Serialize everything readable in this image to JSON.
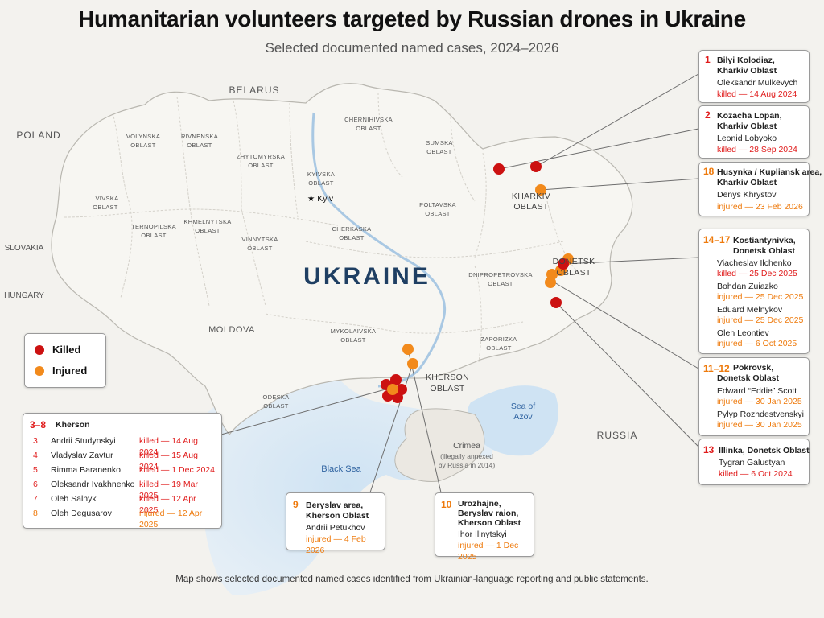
{
  "header": {
    "title": "Humanitarian volunteers targeted by Russian drones in Ukraine",
    "subtitle": "Selected documented named cases, 2024–2026"
  },
  "map": {
    "country_label": "UKRAINE",
    "neighbors": {
      "belarus": "BELARUS",
      "poland": "POLAND",
      "slovakia": "SLOVAKIA",
      "hungary": "HUNGARY",
      "moldova": "MOLDOVA",
      "russia": "RUSSIA"
    },
    "water": {
      "black_sea": "Black Sea",
      "azov_1": "Sea of",
      "azov_2": "Azov"
    },
    "crimea": {
      "name": "Crimea",
      "note_1": "(illegally annexed",
      "note_2": "by Russia in 2014)"
    },
    "capital": "★ Kyiv",
    "oblasts": {
      "volynska_1": "VOLYNSKA",
      "volynska_2": "OBLAST",
      "rivnenska_1": "RIVNENSKA",
      "rivnenska_2": "OBLAST",
      "zhytomyrska_1": "ZHYTOMYRSKA",
      "zhytomyrska_2": "OBLAST",
      "kyivska_1": "KYIVSKA",
      "kyivska_2": "OBLAST",
      "chernihivska_1": "CHERNIHIVSKA",
      "chernihivska_2": "OBLAST",
      "sumska_1": "SUMSKA",
      "sumska_2": "OBLAST",
      "kharkiv_1": "KHARKIV",
      "kharkiv_2": "OBLAST",
      "lvivska_1": "LVIVSKA",
      "lvivska_2": "OBLAST",
      "ternopilska_1": "TERNOPILSKA",
      "ternopilska_2": "OBLAST",
      "khmelnytska_1": "KHMELNYTSKA",
      "khmelnytska_2": "OBLAST",
      "vinnytska_1": "VINNYTSKA",
      "vinnytska_2": "OBLAST",
      "cherkaska_1": "CHERKASKA",
      "cherkaska_2": "OBLAST",
      "poltavska_1": "POLTAVSKA",
      "poltavska_2": "OBLAST",
      "dnipro_1": "DNIPROPETROVSKA",
      "dnipro_2": "OBLAST",
      "donetsk_1": "DONETSK",
      "donetsk_2": "OBLAST",
      "mykolaivska_1": "MYKOLAIVSKA",
      "mykolaivska_2": "OBLAST",
      "kherson_1": "KHERSON",
      "kherson_2": "OBLAST",
      "zaporizka_1": "ZAPORIZKA",
      "zaporizka_2": "OBLAST",
      "odeska_1": "ODESKA",
      "odeska_2": "OBLAST"
    }
  },
  "legend": {
    "killed": "Killed",
    "injured": "Injured",
    "killed_color": "#cc1111",
    "injured_color": "#f28a1c"
  },
  "cases": {
    "c1": {
      "num": "1",
      "place_1": "Bilyi Kolodiaz,",
      "place_2": "Kharkiv Oblast",
      "name": "Oleksandr Mulkevych",
      "status": "killed — 14 Aug 2024"
    },
    "c2": {
      "num": "2",
      "place_1": "Kozacha Lopan,",
      "place_2": "Kharkiv Oblast",
      "name": "Leonid Lobyoko",
      "status": "killed — 28 Sep 2024"
    },
    "c18": {
      "num": "18",
      "place_1": "Husynka / Kupliansk area,",
      "place_2": "Kharkiv Oblast",
      "name": "Denys Khrystov",
      "status": "injured — 23 Feb 2026"
    },
    "c14": {
      "num": "14–17",
      "place_1": "Kostiantynivka,",
      "place_2": "Donetsk Oblast",
      "people": [
        {
          "name": "Viacheslav Ilchenko",
          "status": "killed — 25 Dec 2025"
        },
        {
          "name": "Bohdan Zuiazko",
          "status": "injured — 25 Dec 2025"
        },
        {
          "name": "Eduard Melnykov",
          "status": "injured — 25 Dec 2025"
        },
        {
          "name": "Oleh Leontiev",
          "status": "injured — 6 Oct 2025"
        }
      ]
    },
    "c11": {
      "num": "11–12",
      "place_1": "Pokrovsk,",
      "place_2": "Donetsk Oblast",
      "people": [
        {
          "name": "Edward “Eddie” Scott",
          "status": "injured — 30 Jan 2025"
        },
        {
          "name": "Pylyp Rozhdestvenskyi",
          "status": "injured — 30 Jan 2025"
        }
      ]
    },
    "c13": {
      "num": "13",
      "place_1": "Illinka, Donetsk Oblast",
      "name": "Tygran Galustyan",
      "status": "killed — 6 Oct 2024"
    },
    "c9": {
      "num": "9",
      "place_1": "Beryslav area,",
      "place_2": "Kherson Oblast",
      "name": "Andrii Petukhov",
      "status": "injured — 4 Feb 2026"
    },
    "c10": {
      "num": "10",
      "place_1": "Urozhajne,",
      "place_2": "Beryslav raion,",
      "place_3": "Kherson Oblast",
      "name": "Ihor Illnytskyi",
      "status": "injured — 1 Dec 2025"
    },
    "kherson": {
      "num": "3–8",
      "place": "Kherson",
      "rows": [
        {
          "num": "3",
          "name": "Andrii Studynskyi",
          "status": "killed — 14 Aug 2024"
        },
        {
          "num": "4",
          "name": "Vladyslav Zavtur",
          "status": "killed — 15 Aug 2024"
        },
        {
          "num": "5",
          "name": "Rimma Baranenko",
          "status": "killed — 1 Dec 2024"
        },
        {
          "num": "6",
          "name": "Oleksandr Ivakhnenko",
          "status": "killed — 19 Mar 2025"
        },
        {
          "num": "7",
          "name": "Oleh Salnyk",
          "status": "killed — 12 Apr 2025"
        },
        {
          "num": "8",
          "name": "Oleh Degusarov",
          "status": "injured — 12 Apr 2025"
        }
      ]
    }
  },
  "footer": "Map shows selected documented named cases identified from Ukrainian-language reporting and public statements."
}
